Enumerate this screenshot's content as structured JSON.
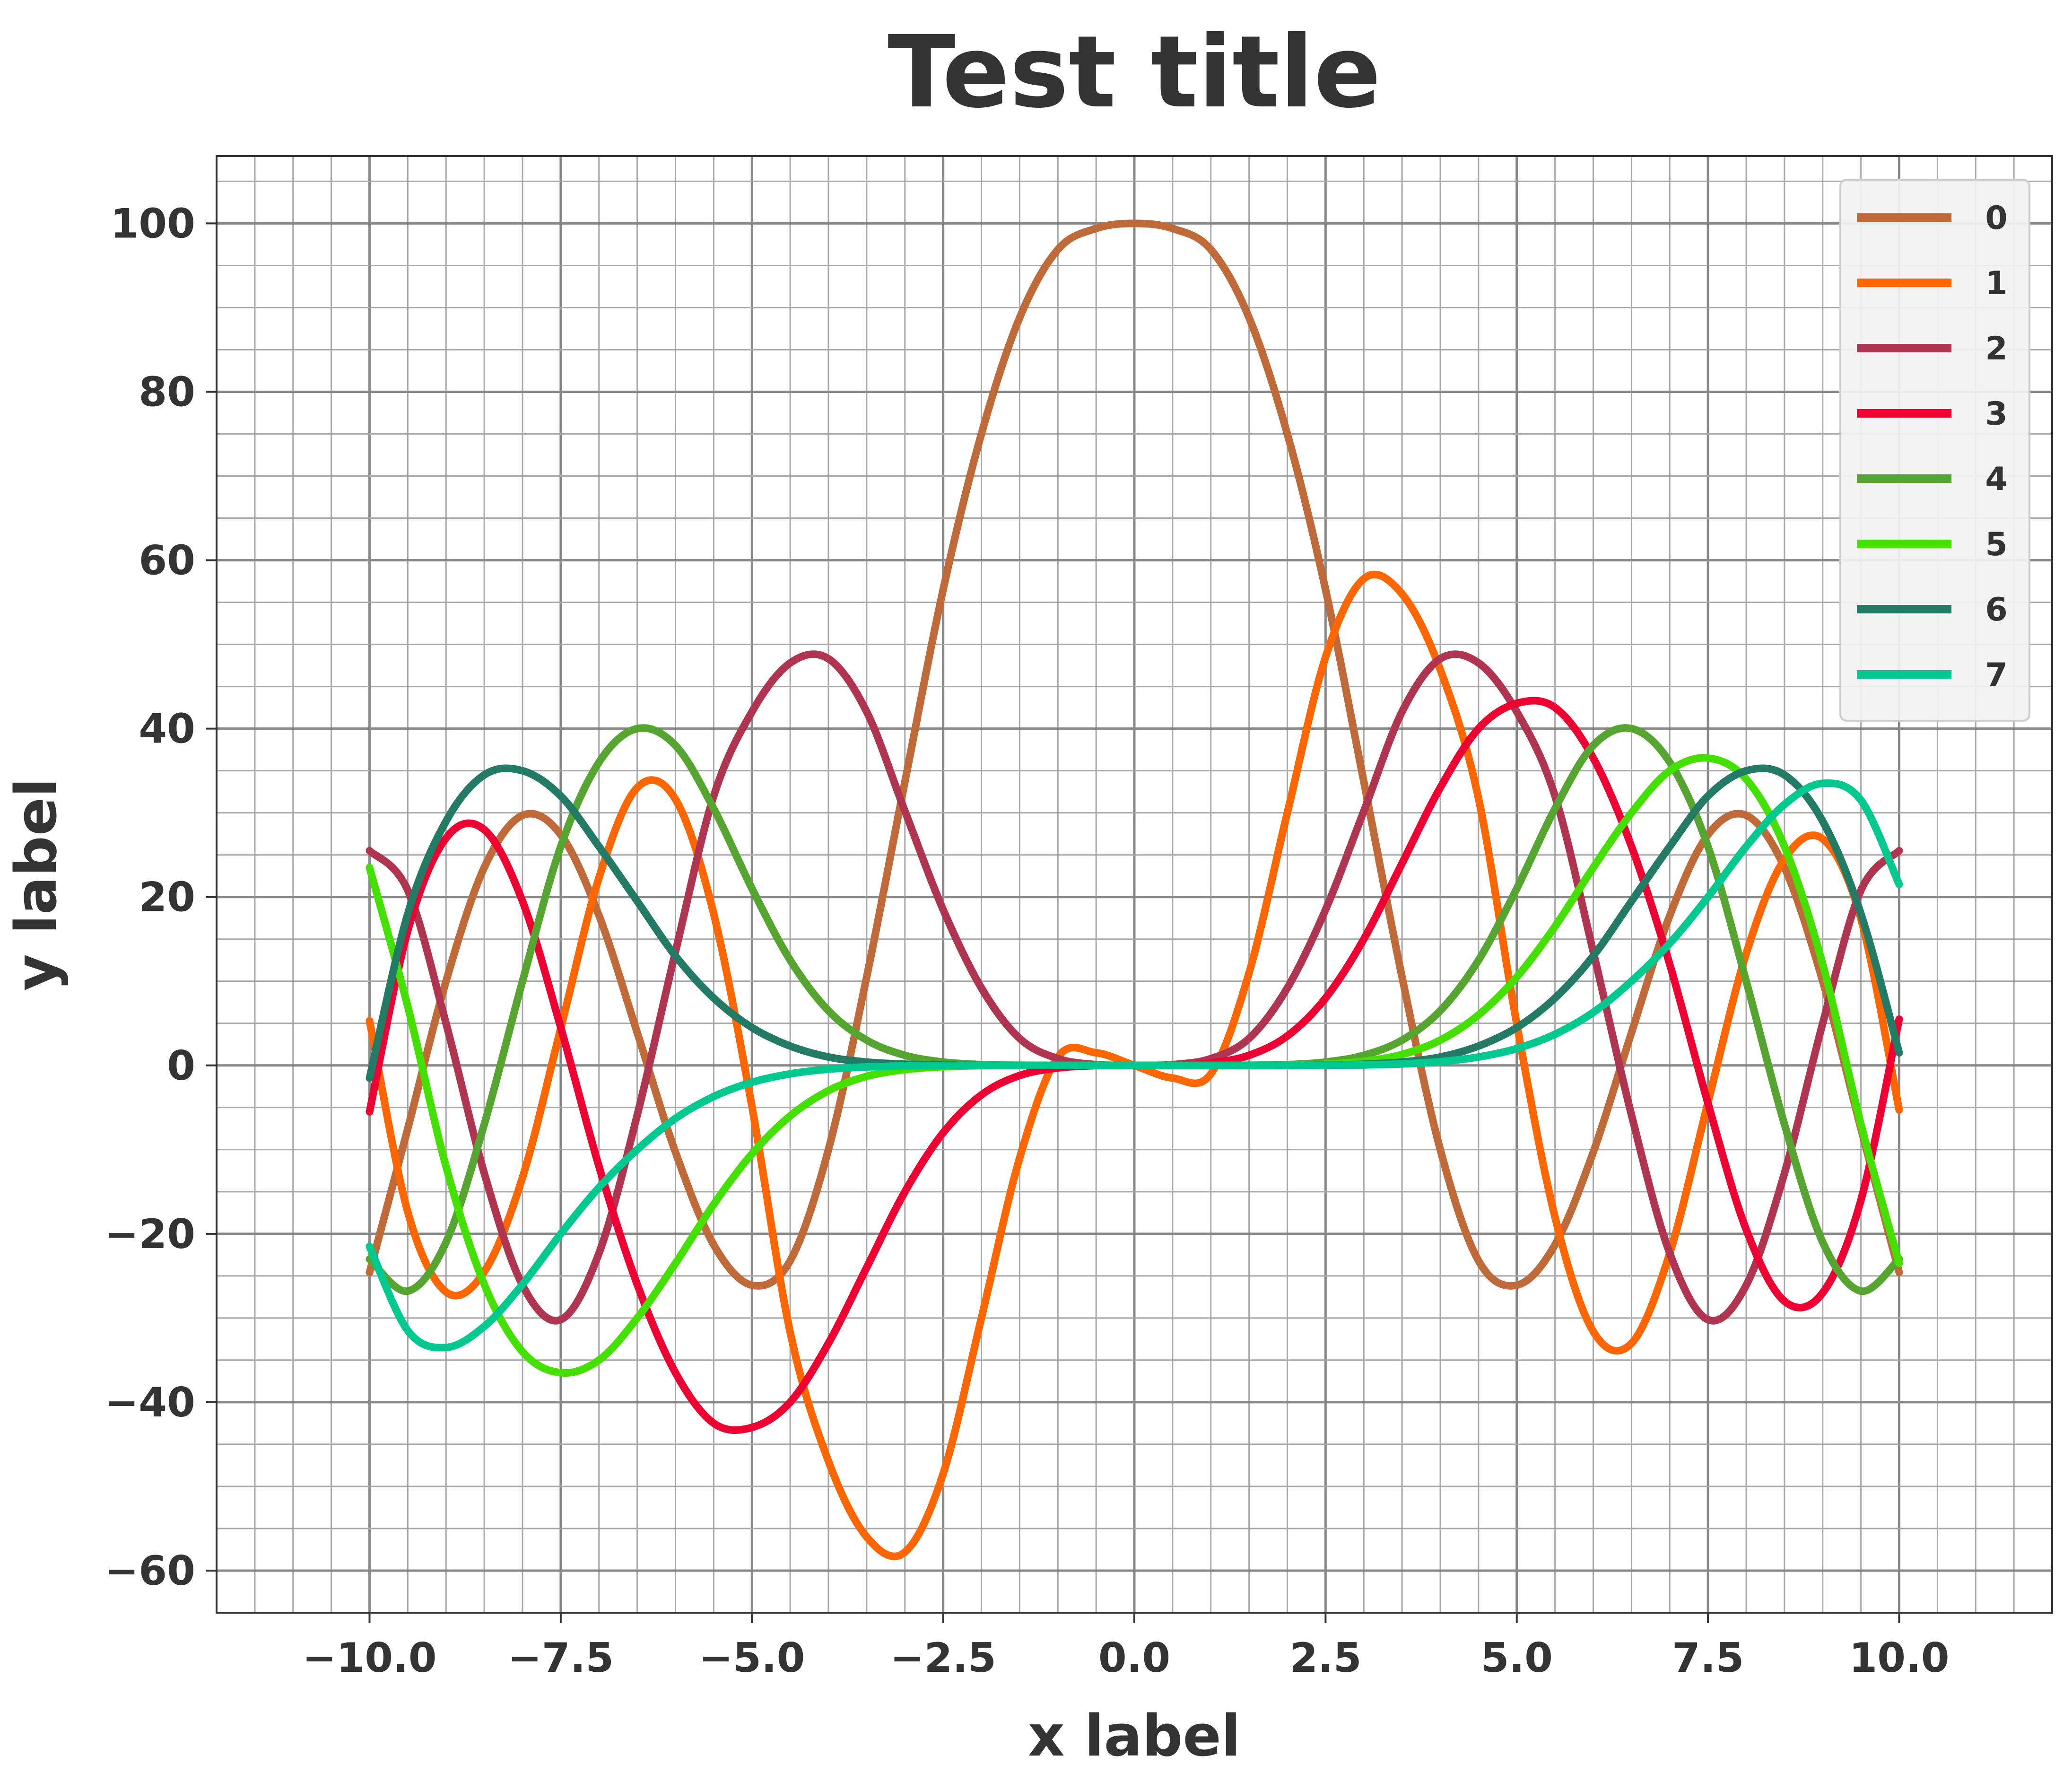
{
  "chart_data": {
    "type": "line",
    "title": "Test title",
    "xlabel": "x label",
    "ylabel": "y label",
    "xlim": [
      -12.0,
      12.0
    ],
    "ylim": [
      -65,
      108
    ],
    "xticks": [
      -10,
      -7.5,
      -5,
      -2.5,
      0,
      2.5,
      5,
      7.5,
      10
    ],
    "xtick_labels": [
      "−10.0",
      "−7.5",
      "−5.0",
      "−2.5",
      "0.0",
      "2.5",
      "5.0",
      "7.5",
      "10.0"
    ],
    "yticks": [
      -60,
      -40,
      -20,
      0,
      20,
      40,
      60,
      80,
      100
    ],
    "ytick_labels": [
      "−60",
      "−40",
      "−20",
      "0",
      "20",
      "40",
      "60",
      "80",
      "100"
    ],
    "grid": true,
    "legend_position": "top-right",
    "x": [
      -10,
      -9.5,
      -9,
      -8.5,
      -8,
      -7.5,
      -7,
      -6.5,
      -6,
      -5.5,
      -5,
      -4.5,
      -4,
      -3.5,
      -3,
      -2.5,
      -2,
      -1.5,
      -1,
      -0.5,
      0,
      0.5,
      1,
      1.5,
      2,
      2.5,
      3,
      3.5,
      4,
      4.5,
      5,
      5.5,
      6,
      6.5,
      7,
      7.5,
      8,
      8.5,
      9,
      9.5,
      10
    ],
    "series": [
      {
        "name": "0",
        "color": "#c06a3a",
        "values": [
          -24.6,
          -7.5,
          10.0,
          23.5,
          29.7,
          27.4,
          17.8,
          3.9,
          -10.3,
          -21.3,
          -26.1,
          -23.2,
          -10.0,
          10.5,
          33.7,
          56.5,
          75.0,
          88.8,
          96.9,
          99.4,
          100.0,
          99.4,
          96.9,
          88.8,
          75.0,
          56.5,
          33.7,
          10.5,
          -10.0,
          -23.2,
          -26.1,
          -21.3,
          -10.3,
          3.9,
          17.8,
          27.4,
          29.7,
          23.5,
          10.0,
          -7.5,
          -24.6
        ]
      },
      {
        "name": "1",
        "color": "#ff6600",
        "values": [
          5.3,
          -17.4,
          -26.9,
          -24.5,
          -13.3,
          4.4,
          22.3,
          33.0,
          31.6,
          18.0,
          -4.9,
          -31.7,
          -47.0,
          -56.0,
          -57.8,
          -48.5,
          -30.0,
          -11.0,
          1.0,
          1.5,
          0.0,
          -1.5,
          -1.0,
          11.0,
          30.0,
          48.5,
          57.8,
          56.0,
          47.0,
          31.7,
          4.9,
          -18.0,
          -31.6,
          -33.0,
          -22.3,
          -4.4,
          13.3,
          24.5,
          26.9,
          17.4,
          -5.3
        ]
      },
      {
        "name": "2",
        "color": "#b03550",
        "values": [
          25.5,
          20.8,
          5.0,
          -12.8,
          -26.1,
          -30.2,
          -22.3,
          -5.9,
          13.5,
          32.0,
          42.0,
          47.8,
          48.3,
          42.0,
          30.2,
          18.5,
          9.2,
          3.2,
          0.8,
          0.1,
          0.0,
          0.1,
          0.8,
          3.2,
          9.2,
          18.5,
          30.2,
          42.0,
          48.3,
          47.8,
          42.0,
          32.0,
          13.5,
          -5.9,
          -22.3,
          -30.2,
          -26.1,
          -12.8,
          5.0,
          20.8,
          25.5
        ]
      },
      {
        "name": "3",
        "color": "#ee0033",
        "values": [
          -5.5,
          16.0,
          27.0,
          28.0,
          19.5,
          4.5,
          -12.0,
          -26.0,
          -36.5,
          -42.5,
          -43.0,
          -40.0,
          -33.0,
          -24.0,
          -15.0,
          -8.0,
          -3.5,
          -1.2,
          -0.3,
          -0.02,
          0.0,
          0.02,
          0.3,
          1.2,
          3.5,
          8.0,
          15.0,
          24.0,
          33.0,
          40.0,
          43.0,
          42.5,
          36.5,
          26.0,
          12.0,
          -4.5,
          -19.5,
          -28.0,
          -27.0,
          -16.0,
          5.5
        ]
      },
      {
        "name": "4",
        "color": "#55a530",
        "values": [
          -23.0,
          -26.8,
          -21.0,
          -7.0,
          10.0,
          26.0,
          36.0,
          40.0,
          38.0,
          30.5,
          21.0,
          12.5,
          6.5,
          3.0,
          1.2,
          0.4,
          0.1,
          0.02,
          0.0,
          0.0,
          0.0,
          0.0,
          0.0,
          0.02,
          0.1,
          0.4,
          1.2,
          3.0,
          6.5,
          12.5,
          21.0,
          30.5,
          38.0,
          40.0,
          36.0,
          26.0,
          10.0,
          -7.0,
          -21.0,
          -26.8,
          -23.0
        ]
      },
      {
        "name": "5",
        "color": "#44e000",
        "values": [
          23.5,
          7.0,
          -12.0,
          -26.0,
          -34.0,
          -36.5,
          -35.0,
          -30.0,
          -23.5,
          -16.5,
          -10.5,
          -6.0,
          -3.0,
          -1.3,
          -0.5,
          -0.15,
          -0.03,
          0.0,
          0.0,
          0.0,
          0.0,
          0.0,
          0.0,
          0.0,
          0.03,
          0.15,
          0.5,
          1.3,
          3.0,
          6.0,
          10.5,
          16.5,
          23.5,
          30.0,
          35.0,
          36.5,
          34.0,
          26.0,
          12.0,
          -7.0,
          -23.5
        ]
      },
      {
        "name": "6",
        "color": "#237a65",
        "values": [
          -1.5,
          18.0,
          29.0,
          34.5,
          35.0,
          32.0,
          26.0,
          19.5,
          13.0,
          8.0,
          4.5,
          2.3,
          1.0,
          0.4,
          0.15,
          0.04,
          0.01,
          0.0,
          0.0,
          0.0,
          0.0,
          0.0,
          0.0,
          0.0,
          0.01,
          0.04,
          0.15,
          0.4,
          1.0,
          2.3,
          4.5,
          8.0,
          13.0,
          19.5,
          26.0,
          32.0,
          35.0,
          34.5,
          29.0,
          18.0,
          1.5
        ]
      },
      {
        "name": "7",
        "color": "#00c990",
        "values": [
          -21.5,
          -31.5,
          -33.5,
          -31.0,
          -26.0,
          -20.0,
          -14.5,
          -10.0,
          -6.3,
          -3.7,
          -2.0,
          -1.0,
          -0.45,
          -0.18,
          -0.06,
          -0.02,
          0.0,
          0.0,
          0.0,
          0.0,
          0.0,
          0.0,
          0.0,
          0.0,
          0.0,
          0.02,
          0.06,
          0.18,
          0.45,
          1.0,
          2.0,
          3.7,
          6.3,
          10.0,
          14.5,
          20.0,
          26.0,
          31.0,
          33.5,
          31.5,
          21.5
        ]
      }
    ]
  }
}
